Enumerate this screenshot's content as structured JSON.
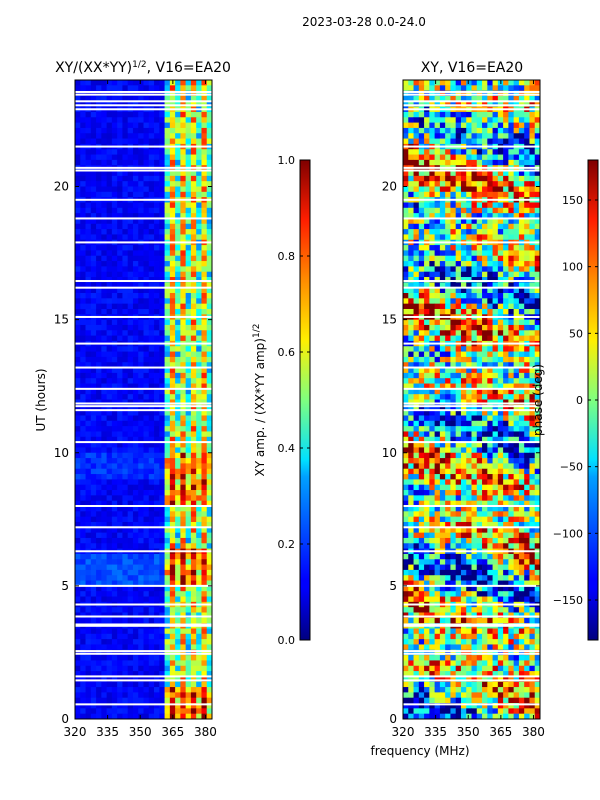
{
  "suptitle": "2023-03-28 0.0-24.0",
  "chart_data": [
    {
      "type": "heatmap",
      "title": "XY/(XX*YY)",
      "title_exponent": "1/2",
      "title_suffix": ", V16=EA20",
      "xlabel": "",
      "ylabel": "UT (hours)",
      "x_ticks": [
        320,
        335,
        350,
        365,
        380
      ],
      "xlim": [
        320,
        383
      ],
      "y_ticks": [
        0,
        5,
        10,
        15,
        20
      ],
      "ylim": [
        0,
        24
      ],
      "colorbar": {
        "label": "XY amp. / (XX*YY amp)",
        "label_exponent": "1/2",
        "range": [
          0.0,
          1.0
        ],
        "ticks": [
          "0.0",
          "0.2",
          "0.4",
          "0.6",
          "0.8",
          "1.0"
        ],
        "tick_values": [
          0.0,
          0.2,
          0.4,
          0.6,
          0.8,
          1.0
        ]
      },
      "description_note": "low values below ~360 MHz, high values in 360-380 MHz band",
      "gaps_hours": [
        0.55,
        1.45,
        1.6,
        2.45,
        2.55,
        3.5,
        3.55,
        3.85,
        4.3,
        5.0,
        6.3,
        7.2,
        8.0,
        10.4,
        11.6,
        11.75,
        11.85,
        12.4,
        13.2,
        14.1,
        15.1,
        16.2,
        16.45,
        17.9,
        18.8,
        19.5,
        20.6,
        20.7,
        21.5,
        22.9,
        23.05,
        23.2,
        23.45,
        23.55
      ]
    },
    {
      "type": "heatmap",
      "title": "XY, V16=EA20",
      "xlabel": "frequency (MHz)",
      "ylabel": "",
      "x_ticks": [
        320,
        335,
        350,
        365,
        380
      ],
      "xlim": [
        320,
        383
      ],
      "y_ticks": [
        0,
        5,
        10,
        15,
        20
      ],
      "ylim": [
        0,
        24
      ],
      "colorbar": {
        "label": "phase (deg)",
        "range": [
          -180,
          180
        ],
        "ticks": [
          "−150",
          "−100",
          "−50",
          "0",
          "50",
          "100",
          "150"
        ],
        "tick_values": [
          -150,
          -100,
          -50,
          0,
          50,
          100,
          150
        ]
      },
      "gaps_hours": [
        0.55,
        1.45,
        1.6,
        2.45,
        2.55,
        3.5,
        3.55,
        3.85,
        4.3,
        5.0,
        6.3,
        7.2,
        8.0,
        10.4,
        11.6,
        11.75,
        11.85,
        12.4,
        13.2,
        14.1,
        15.1,
        16.2,
        16.45,
        17.9,
        18.8,
        19.5,
        20.6,
        20.7,
        21.5,
        22.9,
        23.05,
        23.2,
        23.45,
        23.55
      ]
    }
  ]
}
